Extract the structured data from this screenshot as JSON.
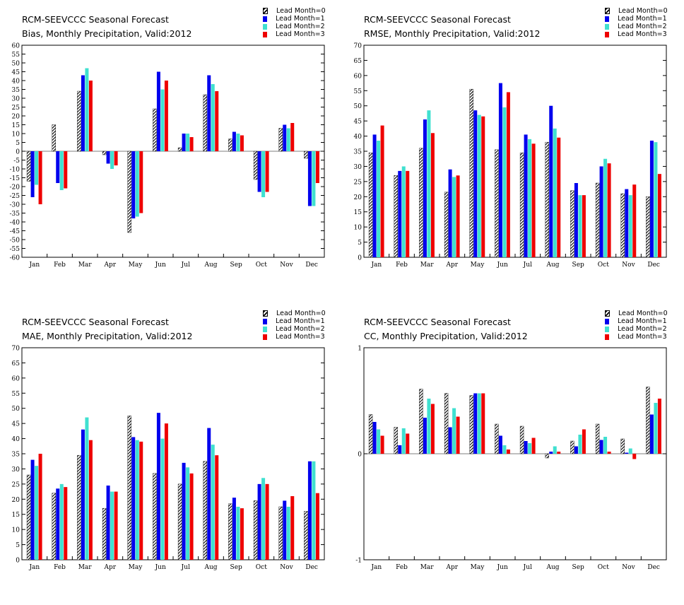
{
  "legend": {
    "labels": [
      "Lead Month=0",
      "Lead Month=1",
      "Lead Month=2",
      "Lead Month=3"
    ],
    "colors": [
      "hatched-black",
      "#0000ee",
      "#40e0d0",
      "#ee0000"
    ]
  },
  "chart_data": [
    {
      "type": "bar",
      "title": "RCM-SEEVCCC Seasonal Forecast",
      "subtitle": "Bias, Monthly Precipitation, Valid:2012",
      "categories": [
        "Jan",
        "Feb",
        "Mar",
        "Apr",
        "May",
        "Jun",
        "Jul",
        "Aug",
        "Sep",
        "Oct",
        "Nov",
        "Dec"
      ],
      "ylim": [
        -60,
        60
      ],
      "yticks": [
        -60,
        -55,
        -50,
        -45,
        -40,
        -35,
        -30,
        -25,
        -20,
        -15,
        -10,
        -5,
        0,
        5,
        10,
        15,
        20,
        25,
        30,
        35,
        40,
        45,
        50,
        55,
        60
      ],
      "series": [
        {
          "name": "Lead Month=0",
          "values": [
            -17,
            15,
            34,
            -2,
            -46,
            24,
            2,
            32,
            7,
            -16,
            13,
            -4
          ]
        },
        {
          "name": "Lead Month=1",
          "values": [
            -26,
            -18,
            43,
            -7,
            -38,
            45,
            10,
            43,
            11,
            -23,
            15,
            -31
          ]
        },
        {
          "name": "Lead Month=2",
          "values": [
            -19,
            -22,
            47,
            -10,
            -37,
            35,
            10,
            38,
            10,
            -26,
            13,
            -31
          ]
        },
        {
          "name": "Lead Month=3",
          "values": [
            -30,
            -21,
            40,
            -8,
            -35,
            40,
            8,
            34,
            9,
            -23,
            16,
            -18
          ]
        }
      ]
    },
    {
      "type": "bar",
      "title": "RCM-SEEVCCC Seasonal Forecast",
      "subtitle": "RMSE, Monthly Precipitation, Valid:2012",
      "categories": [
        "Jan",
        "Feb",
        "Mar",
        "Apr",
        "May",
        "Jun",
        "Jul",
        "Aug",
        "Sep",
        "Oct",
        "Nov",
        "Dec"
      ],
      "ylim": [
        0,
        70
      ],
      "yticks": [
        0,
        5,
        10,
        15,
        20,
        25,
        30,
        35,
        40,
        45,
        50,
        55,
        60,
        65,
        70
      ],
      "series": [
        {
          "name": "Lead Month=0",
          "values": [
            34.5,
            27,
            36,
            21.5,
            55.5,
            35.5,
            34.5,
            38,
            22,
            24.5,
            21,
            20
          ]
        },
        {
          "name": "Lead Month=1",
          "values": [
            40.5,
            28.5,
            45.5,
            29,
            48.5,
            57.5,
            40.5,
            50,
            24.5,
            30,
            22.5,
            38.5
          ]
        },
        {
          "name": "Lead Month=2",
          "values": [
            38.5,
            30,
            48.5,
            26.5,
            47,
            49.5,
            39,
            42.5,
            20.5,
            32.5,
            20.5,
            38
          ]
        },
        {
          "name": "Lead Month=3",
          "values": [
            43.5,
            28.5,
            41,
            27,
            46.5,
            54.5,
            37.5,
            39.5,
            20.5,
            31,
            24,
            27.5
          ]
        }
      ]
    },
    {
      "type": "bar",
      "title": "RCM-SEEVCCC Seasonal Forecast",
      "subtitle": "MAE, Monthly Precipitation, Valid:2012",
      "categories": [
        "Jan",
        "Feb",
        "Mar",
        "Apr",
        "May",
        "Jun",
        "Jul",
        "Aug",
        "Sep",
        "Oct",
        "Nov",
        "Dec"
      ],
      "ylim": [
        0,
        70
      ],
      "yticks": [
        0,
        5,
        10,
        15,
        20,
        25,
        30,
        35,
        40,
        45,
        50,
        55,
        60,
        65,
        70
      ],
      "series": [
        {
          "name": "Lead Month=0",
          "values": [
            28,
            22,
            34.5,
            17,
            47.5,
            28.5,
            25,
            32.5,
            18.5,
            19.5,
            17.5,
            16
          ]
        },
        {
          "name": "Lead Month=1",
          "values": [
            33,
            23.5,
            43,
            24.5,
            40.5,
            48.5,
            32,
            43.5,
            20.5,
            25,
            19.5,
            32.5
          ]
        },
        {
          "name": "Lead Month=2",
          "values": [
            31,
            25,
            47,
            22.5,
            39.5,
            40,
            30.5,
            38,
            17.5,
            27,
            17.5,
            32.5
          ]
        },
        {
          "name": "Lead Month=3",
          "values": [
            35,
            24,
            39.5,
            22.5,
            39,
            45,
            28.5,
            34.5,
            17,
            25,
            21,
            22
          ]
        }
      ]
    },
    {
      "type": "bar",
      "title": "RCM-SEEVCCC Seasonal Forecast",
      "subtitle": "CC, Monthly Precipitation, Valid:2012",
      "categories": [
        "Jan",
        "Feb",
        "Mar",
        "Apr",
        "May",
        "Jun",
        "Jul",
        "Aug",
        "Sep",
        "Oct",
        "Nov",
        "Dec"
      ],
      "ylim": [
        -1,
        1
      ],
      "yticks": [
        -1,
        0,
        1
      ],
      "series": [
        {
          "name": "Lead Month=0",
          "values": [
            0.37,
            0.25,
            0.61,
            0.57,
            0.55,
            0.28,
            0.26,
            -0.04,
            0.12,
            0.28,
            0.14,
            0.63
          ]
        },
        {
          "name": "Lead Month=1",
          "values": [
            0.3,
            0.08,
            0.34,
            0.25,
            0.57,
            0.17,
            0.12,
            0.02,
            0.07,
            0.13,
            0.01,
            0.37
          ]
        },
        {
          "name": "Lead Month=2",
          "values": [
            0.23,
            0.24,
            0.52,
            0.43,
            0.57,
            0.08,
            0.1,
            0.07,
            0.18,
            0.16,
            0.05,
            0.48
          ]
        },
        {
          "name": "Lead Month=3",
          "values": [
            0.17,
            0.19,
            0.47,
            0.35,
            0.57,
            0.04,
            0.15,
            0.02,
            0.23,
            0.02,
            -0.05,
            0.52
          ]
        }
      ]
    }
  ]
}
